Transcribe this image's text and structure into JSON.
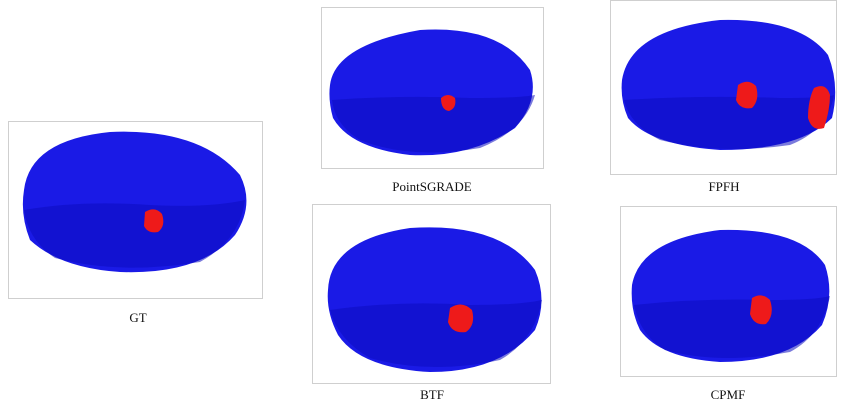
{
  "panels": [
    {
      "label": "GT"
    },
    {
      "label": "PointSGRADE"
    },
    {
      "label": "FPFH"
    },
    {
      "label": "BTF"
    },
    {
      "label": "CPMF"
    }
  ]
}
